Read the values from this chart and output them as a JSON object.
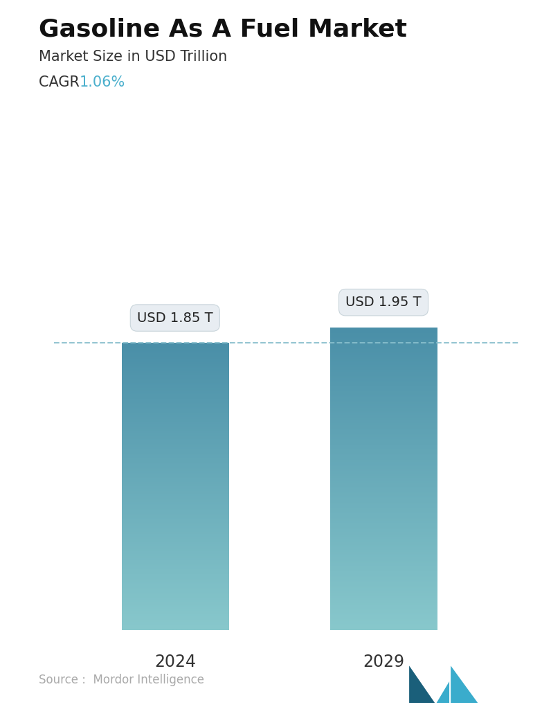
{
  "title": "Gasoline As A Fuel Market",
  "subtitle": "Market Size in USD Trillion",
  "cagr_label": "CAGR",
  "cagr_value": "1.06%",
  "cagr_color": "#4AAFCC",
  "categories": [
    "2024",
    "2029"
  ],
  "values": [
    1.85,
    1.95
  ],
  "bar_labels": [
    "USD 1.85 T",
    "USD 1.95 T"
  ],
  "bar_top_color": "#4a8fa8",
  "bar_bottom_color": "#88c8cc",
  "dashed_line_color": "#88bfcc",
  "source_text": "Source :  Mordor Intelligence",
  "source_color": "#aaaaaa",
  "background_color": "#ffffff",
  "title_fontsize": 26,
  "subtitle_fontsize": 15,
  "cagr_fontsize": 15,
  "bar_label_fontsize": 14,
  "axis_label_fontsize": 17,
  "source_fontsize": 12,
  "ylim": [
    0,
    2.4
  ],
  "bar_width": 0.22,
  "x_positions": [
    0.27,
    0.7
  ]
}
